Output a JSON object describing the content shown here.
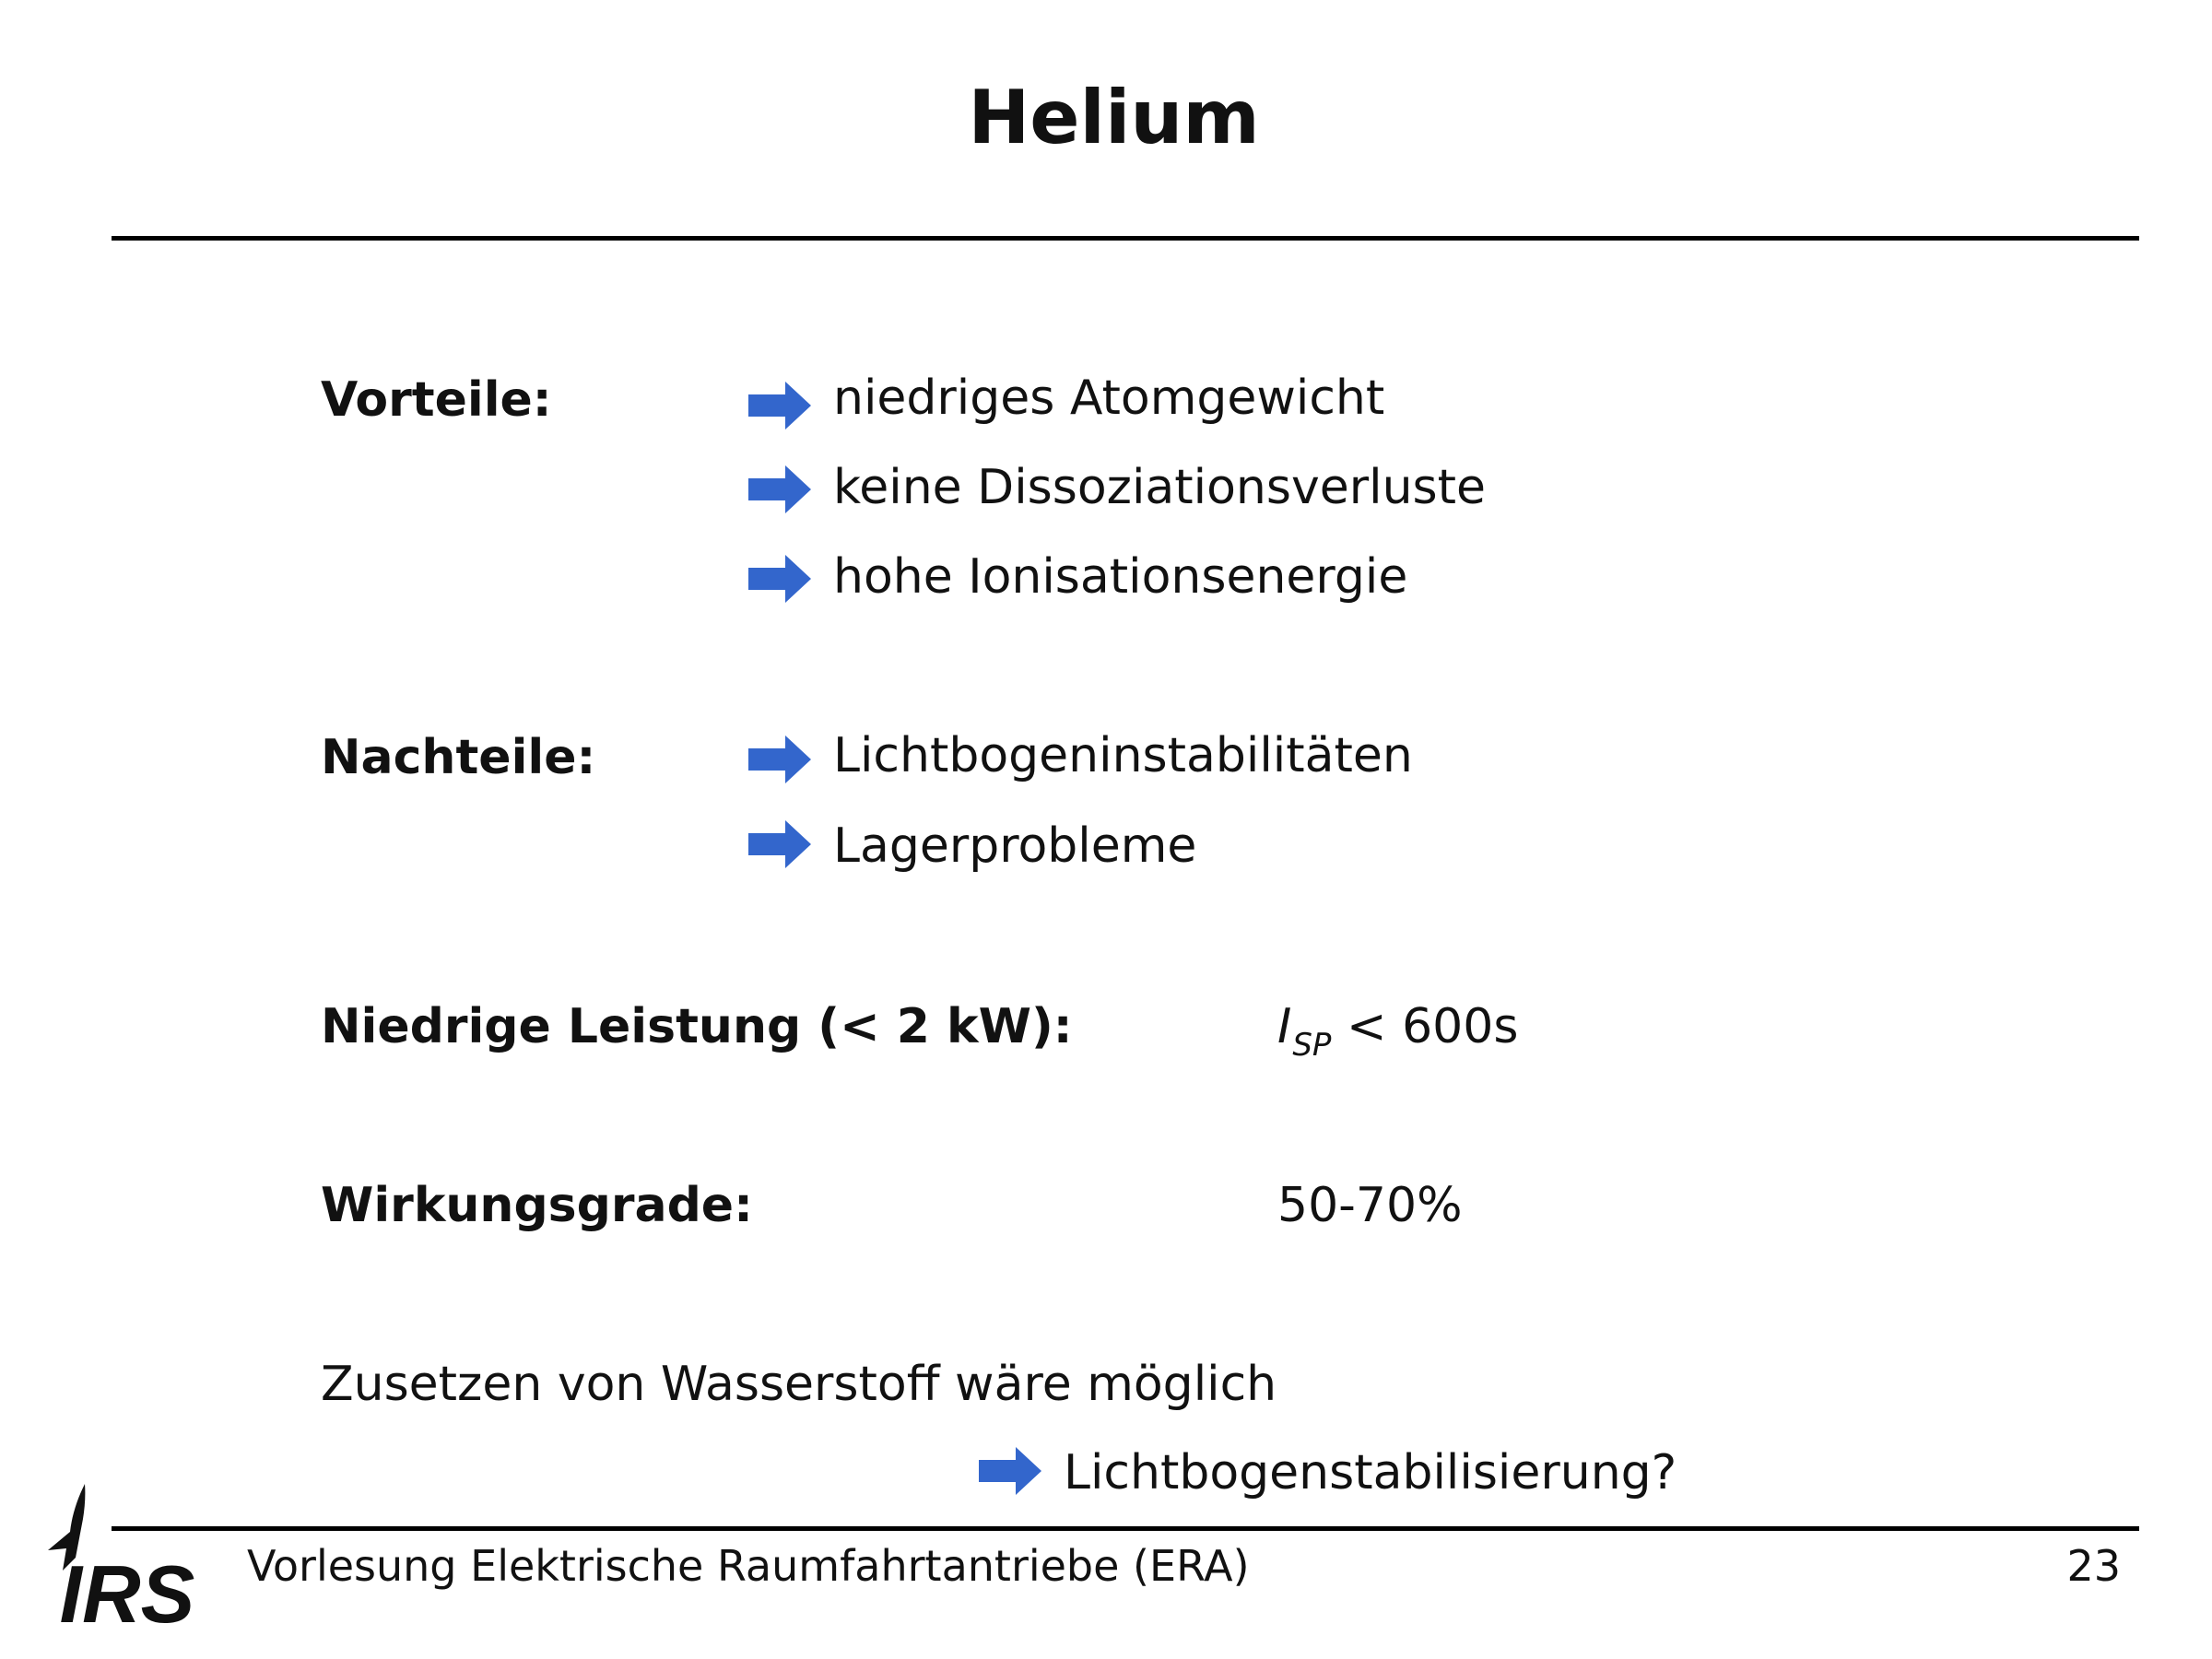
{
  "slide": {
    "title": "Helium",
    "page_number": "23"
  },
  "sections": {
    "vorteile": {
      "label": "Vorteile:",
      "items": [
        "niedriges Atomgewicht",
        "keine Dissoziationsverluste",
        "hohe Ionisationsenergie"
      ]
    },
    "nachteile": {
      "label": "Nachteile:",
      "items": [
        "Lichtbogeninstabilitäten",
        "Lagerprobleme"
      ]
    },
    "leistung": {
      "label": "Niedrige Leistung (< 2 kW):",
      "value_symbol": "I",
      "value_subscript": "SP",
      "value_rest": " < 600s"
    },
    "wirkungsgrade": {
      "label": "Wirkungsgrade:",
      "value": "50-70%"
    },
    "zusatz": {
      "text": "Zusetzen von Wasserstoff wäre möglich",
      "consequence": "Lichtbogenstabilisierung?"
    }
  },
  "footer": {
    "text": "Vorlesung Elektrische Raumfahrtantriebe (ERA)",
    "logo_text": "IRS"
  },
  "colors": {
    "arrow": "#3366cc",
    "text": "#111111",
    "rule": "#000000"
  },
  "icons": {
    "bullet": "arrow-right-icon",
    "logo": "irs-rocket-logo"
  }
}
